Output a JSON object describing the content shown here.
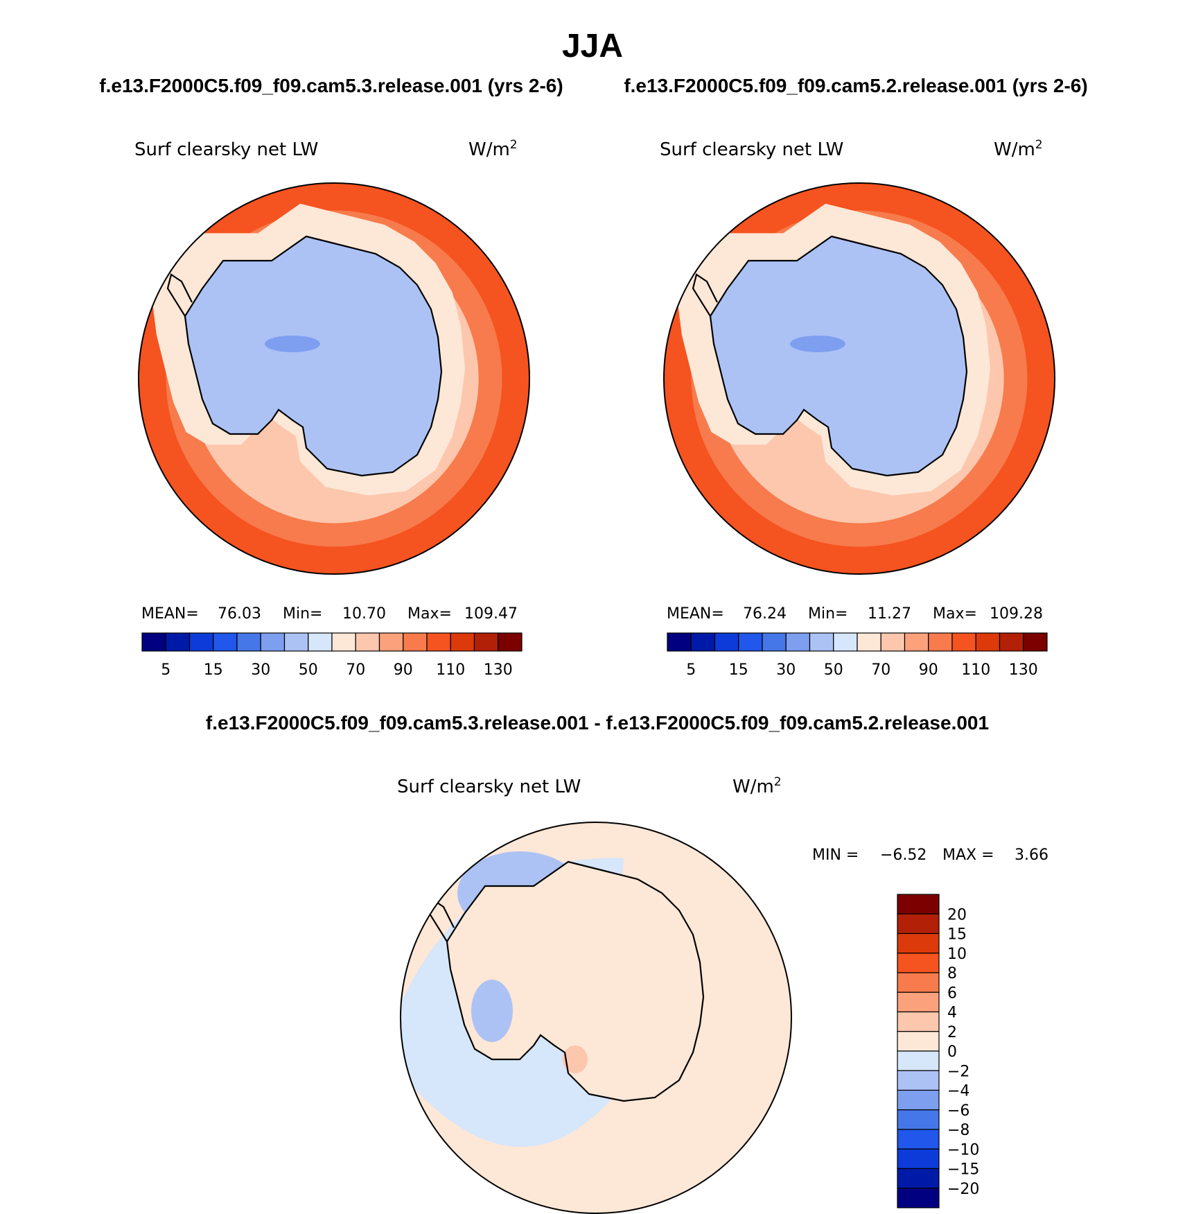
{
  "title": "JJA",
  "header_left": "f.e13.F2000C5.f09_f09.cam5.3.release.001 (yrs 2-6)",
  "header_right": "f.e13.F2000C5.f09_f09.cam5.2.release.001 (yrs 2-6)",
  "diff_header": "f.e13.F2000C5.f09_f09.cam5.3.release.001 - f.e13.F2000C5.f09_f09.cam5.2.release.001",
  "colors": {
    "abs_scale": [
      "#000080",
      "#001aa8",
      "#0d3bd9",
      "#2157ea",
      "#4677e8",
      "#7e9ff0",
      "#acc2f5",
      "#d6e6fb",
      "#fde7d6",
      "#fcc7ad",
      "#fba17c",
      "#f77b4c",
      "#f5531f",
      "#dc3a0a",
      "#b22007",
      "#7c0000"
    ],
    "diff_scale": [
      "#000080",
      "#001aa8",
      "#0d3bd9",
      "#2157ea",
      "#4677e8",
      "#7e9ff0",
      "#acc2f5",
      "#d6e6fb",
      "#fde7d6",
      "#fcc7ad",
      "#fba17c",
      "#f77b4c",
      "#f5531f",
      "#dc3a0a",
      "#b22007",
      "#7c0000"
    ]
  },
  "chart_data": [
    {
      "type": "contour-map",
      "projection": "south polar stereographic",
      "variable": "Surf clearsky net LW",
      "units": "W/m",
      "units_sup": "2",
      "stats": {
        "mean_label": "MEAN=",
        "mean": "76.03",
        "min_label": "Min=",
        "min": "10.70",
        "max_label": "Max=",
        "max": "109.47"
      },
      "levels": [
        5,
        15,
        30,
        50,
        70,
        90,
        110,
        130
      ],
      "field": {
        "ocean_far": 100,
        "ocean_mid": 90,
        "ocean_near": 78,
        "coast_band": 66,
        "ice_sheet": 45,
        "ice_core": 32,
        "ice_min": 22
      }
    },
    {
      "type": "contour-map",
      "projection": "south polar stereographic",
      "variable": "Surf clearsky net LW",
      "units": "W/m",
      "units_sup": "2",
      "stats": {
        "mean_label": "MEAN=",
        "mean": "76.24",
        "min_label": "Min=",
        "min": "11.27",
        "max_label": "Max=",
        "max": "109.28"
      },
      "levels": [
        5,
        15,
        30,
        50,
        70,
        90,
        110,
        130
      ],
      "field": {
        "ocean_far": 100,
        "ocean_mid": 90,
        "ocean_near": 78,
        "coast_band": 66,
        "ice_sheet": 45,
        "ice_core": 32,
        "ice_min": 22
      }
    },
    {
      "type": "contour-map",
      "projection": "south polar stereographic",
      "variable": "Surf clearsky net LW",
      "units": "W/m",
      "units_sup": "2",
      "stats": {
        "min_label": "MIN =",
        "min": "−6.52",
        "max_label": "MAX =",
        "max": "3.66"
      },
      "levels": [
        "20",
        "15",
        "10",
        "8",
        "6",
        "4",
        "2",
        "0",
        "−2",
        "−4",
        "−6",
        "−8",
        "−10",
        "−15",
        "−20"
      ],
      "field": {
        "ocean_background": 1,
        "pacific_sector": -1,
        "west_antarctica": -3,
        "east_antarctica": 1,
        "ross_patch": 3
      }
    }
  ]
}
